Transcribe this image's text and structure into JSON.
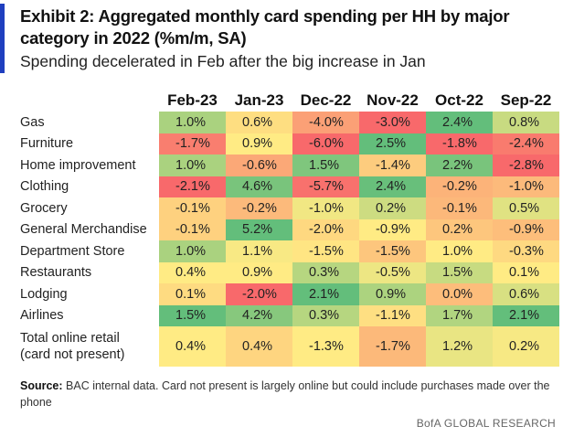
{
  "header": {
    "title": "Exhibit 2: Aggregated monthly card spending per HH by major category in 2022 (%m/m, SA)",
    "subtitle": "Spending decelerated in Feb after the big increase in Jan"
  },
  "footer": {
    "source_label": "Source:",
    "source_text": " BAC internal data. Card not present is largely online but could include purchases made over the phone",
    "credit": "BofA GLOBAL RESEARCH"
  },
  "colors": {
    "accent_bar": "#1f3fbf",
    "scale_low": "#f8696b",
    "scale_mid": "#ffeb84",
    "scale_high": "#63be7b"
  },
  "chart_data": {
    "type": "heatmap",
    "columns": [
      "Feb-23",
      "Jan-23",
      "Dec-22",
      "Nov-22",
      "Oct-22",
      "Sep-22"
    ],
    "rows": [
      {
        "label": "Gas",
        "values": [
          1.0,
          0.6,
          -4.0,
          -3.0,
          2.4,
          0.8
        ],
        "display": [
          "1.0%",
          "0.6%",
          "-4.0%",
          "-3.0%",
          "2.4%",
          "0.8%"
        ]
      },
      {
        "label": "Furniture",
        "values": [
          -1.7,
          0.9,
          -6.0,
          2.5,
          -1.8,
          -2.4
        ],
        "display": [
          "-1.7%",
          "0.9%",
          "-6.0%",
          "2.5%",
          "-1.8%",
          "-2.4%"
        ]
      },
      {
        "label": "Home improvement",
        "values": [
          1.0,
          -0.6,
          1.5,
          -1.4,
          2.2,
          -2.8
        ],
        "display": [
          "1.0%",
          "-0.6%",
          "1.5%",
          "-1.4%",
          "2.2%",
          "-2.8%"
        ]
      },
      {
        "label": "Clothing",
        "values": [
          -2.1,
          4.6,
          -5.7,
          2.4,
          -0.2,
          -1.0
        ],
        "display": [
          "-2.1%",
          "4.6%",
          "-5.7%",
          "2.4%",
          "-0.2%",
          "-1.0%"
        ]
      },
      {
        "label": "Grocery",
        "values": [
          -0.1,
          -0.2,
          -1.0,
          0.2,
          -0.1,
          0.5
        ],
        "display": [
          "-0.1%",
          "-0.2%",
          "-1.0%",
          "0.2%",
          "-0.1%",
          "0.5%"
        ]
      },
      {
        "label": "General Merchandise",
        "values": [
          -0.1,
          5.2,
          -2.0,
          -0.9,
          0.2,
          -0.9
        ],
        "display": [
          "-0.1%",
          "5.2%",
          "-2.0%",
          "-0.9%",
          "0.2%",
          "-0.9%"
        ]
      },
      {
        "label": "Department Store",
        "values": [
          1.0,
          1.1,
          -1.5,
          -1.5,
          1.0,
          -0.3
        ],
        "display": [
          "1.0%",
          "1.1%",
          "-1.5%",
          "-1.5%",
          "1.0%",
          "-0.3%"
        ]
      },
      {
        "label": "Restaurants",
        "values": [
          0.4,
          0.9,
          0.3,
          -0.5,
          1.5,
          0.1
        ],
        "display": [
          "0.4%",
          "0.9%",
          "0.3%",
          "-0.5%",
          "1.5%",
          "0.1%"
        ]
      },
      {
        "label": "Lodging",
        "values": [
          0.1,
          -2.0,
          2.1,
          0.9,
          0.0,
          0.6
        ],
        "display": [
          "0.1%",
          "-2.0%",
          "2.1%",
          "0.9%",
          "0.0%",
          "0.6%"
        ]
      },
      {
        "label": "Airlines",
        "values": [
          1.5,
          4.2,
          0.3,
          -1.1,
          1.7,
          2.1
        ],
        "display": [
          "1.5%",
          "4.2%",
          "0.3%",
          "-1.1%",
          "1.7%",
          "2.1%"
        ]
      },
      {
        "label": "Total online retail\n(card not present)",
        "values": [
          0.4,
          0.4,
          -1.3,
          -1.7,
          1.2,
          0.2
        ],
        "display": [
          "0.4%",
          "0.4%",
          "-1.3%",
          "-1.7%",
          "1.2%",
          "0.2%"
        ]
      }
    ],
    "color_scale": "per-column red-yellow-green"
  }
}
